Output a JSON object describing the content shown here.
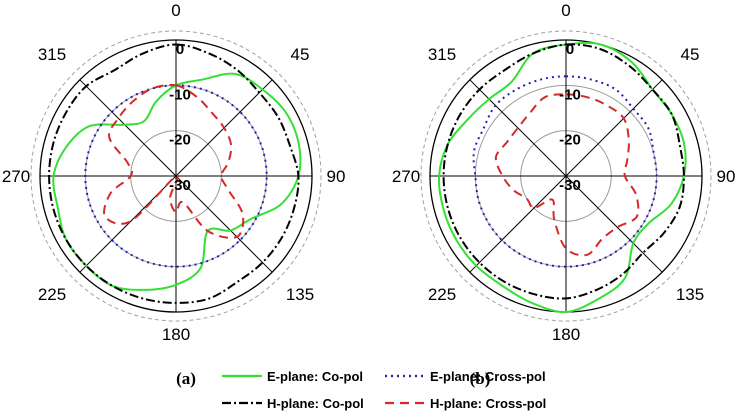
{
  "chart_data": [
    {
      "type": "polar",
      "panel": "(a)",
      "angle_labels": [
        "0",
        "45",
        "90",
        "135",
        "180",
        "225",
        "270",
        "315"
      ],
      "radial_ticks": [
        0,
        -10,
        -20,
        -30
      ],
      "rlim": [
        -30,
        0
      ],
      "angle_unit": "deg",
      "series": [
        {
          "name": "E-plane: Co-pol",
          "theta": [
            0,
            15,
            30,
            45,
            60,
            75,
            90,
            105,
            120,
            135,
            150,
            165,
            180,
            195,
            210,
            225,
            240,
            255,
            270,
            285,
            300,
            315,
            330,
            345
          ],
          "r": [
            -10,
            -8,
            -4,
            -3,
            -2,
            -2,
            -3,
            -6,
            -11,
            -13,
            -16,
            -9,
            -6,
            -4,
            -2,
            -2,
            -2,
            -3,
            -3,
            -5,
            -8,
            -14,
            -16,
            -13
          ]
        },
        {
          "name": "E-plane: Cross-pol",
          "theta": [
            0,
            15,
            30,
            45,
            60,
            75,
            90,
            105,
            120,
            135,
            150,
            165,
            180,
            195,
            210,
            225,
            240,
            255,
            270,
            285,
            300,
            315,
            330,
            345
          ],
          "r": [
            -10,
            -10,
            -10,
            -10,
            -10,
            -10,
            -10,
            -10,
            -10,
            -10,
            -10,
            -10,
            -10,
            -10,
            -10,
            -10,
            -10,
            -10,
            -10,
            -10,
            -10,
            -10,
            -10,
            -10
          ]
        },
        {
          "name": "H-plane: Co-pol",
          "theta": [
            0,
            15,
            30,
            45,
            60,
            75,
            90,
            105,
            120,
            135,
            150,
            165,
            180,
            195,
            210,
            225,
            240,
            255,
            270,
            285,
            300,
            315,
            330,
            345
          ],
          "r": [
            -1,
            -2,
            -3,
            -4,
            -4,
            -4,
            -3,
            -3,
            -3,
            -3,
            -3,
            -2,
            -2,
            -2,
            -2,
            -2,
            -2,
            -2,
            -2,
            -2,
            -2,
            -2,
            -3,
            -2
          ]
        },
        {
          "name": "H-plane: Cross-pol",
          "theta": [
            0,
            15,
            30,
            45,
            60,
            75,
            90,
            105,
            120,
            135,
            150,
            165,
            180,
            195,
            210,
            225,
            240,
            255,
            270,
            285,
            300,
            315,
            330,
            345
          ],
          "r": [
            -10,
            -12,
            -14,
            -15,
            -16,
            -18,
            -20,
            -18,
            -13,
            -11,
            -16,
            -24,
            -22,
            -25,
            -30,
            -16,
            -12,
            -15,
            -20,
            -19,
            -13,
            -12,
            -11,
            -10
          ]
        }
      ]
    },
    {
      "type": "polar",
      "panel": "(b)",
      "angle_labels": [
        "0",
        "45",
        "90",
        "135",
        "180",
        "225",
        "270",
        "315"
      ],
      "radial_ticks": [
        0,
        -10,
        -20,
        -30
      ],
      "rlim": [
        -30,
        0
      ],
      "angle_unit": "deg",
      "series": [
        {
          "name": "E-plane: Co-pol",
          "theta": [
            0,
            15,
            30,
            45,
            60,
            75,
            90,
            105,
            120,
            135,
            150,
            165,
            180,
            195,
            210,
            225,
            240,
            255,
            270,
            285,
            300,
            315,
            330,
            345
          ],
          "r": [
            -1,
            0,
            -1,
            -3,
            -3,
            -3,
            -4,
            -6,
            -9,
            -9,
            -4,
            -2,
            0,
            -1,
            -2,
            -2,
            -2,
            -2,
            -2,
            -3,
            -5,
            -6,
            -6,
            -2
          ]
        },
        {
          "name": "E-plane: Cross-pol",
          "theta": [
            0,
            15,
            30,
            45,
            60,
            75,
            90,
            105,
            120,
            135,
            150,
            165,
            180,
            195,
            210,
            225,
            240,
            255,
            270,
            285,
            300,
            315,
            330,
            345
          ],
          "r": [
            -8,
            -8,
            -8,
            -9,
            -9,
            -10,
            -10,
            -10,
            -10,
            -10,
            -10,
            -10,
            -10,
            -10,
            -10,
            -10,
            -10,
            -10,
            -10,
            -9,
            -9,
            -8,
            -8,
            -8
          ]
        },
        {
          "name": "H-plane: Co-pol",
          "theta": [
            0,
            15,
            30,
            45,
            60,
            75,
            90,
            105,
            120,
            135,
            150,
            165,
            180,
            195,
            210,
            225,
            240,
            255,
            270,
            285,
            300,
            315,
            330,
            345
          ],
          "r": [
            -1,
            -1,
            -2,
            -3,
            -3,
            -4,
            -4,
            -4,
            -5,
            -6,
            -5,
            -4,
            -3,
            -3,
            -3,
            -3,
            -3,
            -3,
            -3,
            -3,
            -3,
            -3,
            -3,
            -2
          ]
        },
        {
          "name": "H-plane: Cross-pol",
          "theta": [
            0,
            15,
            30,
            45,
            60,
            75,
            90,
            105,
            120,
            135,
            150,
            165,
            180,
            195,
            210,
            225,
            240,
            255,
            270,
            285,
            300,
            315,
            330,
            345
          ],
          "r": [
            -12,
            -12,
            -12,
            -12,
            -14,
            -16,
            -17,
            -14,
            -12,
            -14,
            -14,
            -12,
            -14,
            -20,
            -24,
            -20,
            -20,
            -18,
            -16,
            -14,
            -15,
            -15,
            -14,
            -12
          ]
        }
      ]
    }
  ],
  "styles": {
    "E-plane: Co-pol": {
      "color": "#33e033",
      "dash": ""
    },
    "E-plane: Cross-pol": {
      "color": "#1f1fb8",
      "dash": "2,4"
    },
    "H-plane: Co-pol": {
      "color": "#000000",
      "dash": "9,3,2,3"
    },
    "H-plane: Cross-pol": {
      "color": "#d42a2a",
      "dash": "9,6"
    }
  },
  "legend": {
    "items": [
      "E-plane: Co-pol",
      "E-plane: Cross-pol",
      "H-plane: Co-pol",
      "H-plane: Cross-pol"
    ]
  }
}
